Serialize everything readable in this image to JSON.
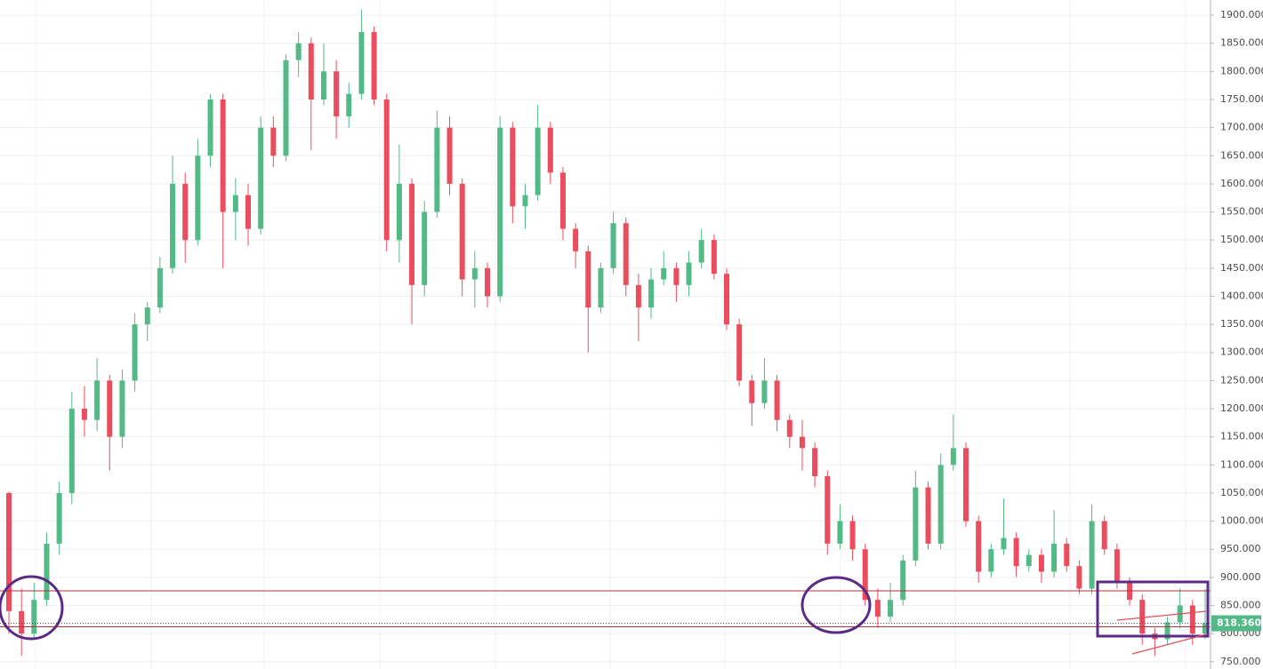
{
  "chart_data": {
    "type": "candlestick",
    "open": [
      1050,
      840,
      800,
      860,
      960,
      1050,
      1200,
      1180,
      1250,
      1150,
      1250,
      1350,
      1380,
      1450,
      1600,
      1500,
      1650,
      1750,
      1550,
      1580,
      1520,
      1700,
      1650,
      1820,
      1850,
      1750,
      1800,
      1720,
      1760,
      1870,
      1750,
      1500,
      1600,
      1420,
      1550,
      1700,
      1600,
      1430,
      1450,
      1400,
      1700,
      1560,
      1580,
      1700,
      1620,
      1520,
      1480,
      1380,
      1450,
      1530,
      1420,
      1380,
      1430,
      1450,
      1420,
      1460,
      1500,
      1440,
      1350,
      1250,
      1210,
      1250,
      1180,
      1150,
      1130,
      1080,
      960,
      1000,
      950,
      860,
      830,
      860,
      930,
      1060,
      960,
      1100,
      1130,
      1000,
      910,
      950,
      970,
      920,
      940,
      910,
      960,
      920,
      880,
      1000,
      950,
      890,
      860,
      800,
      790,
      820,
      850,
      800
    ],
    "high": [
      1052,
      880,
      890,
      980,
      1070,
      1230,
      1240,
      1290,
      1260,
      1270,
      1370,
      1390,
      1470,
      1650,
      1620,
      1680,
      1760,
      1760,
      1610,
      1600,
      1720,
      1720,
      1830,
      1870,
      1860,
      1850,
      1820,
      1780,
      1910,
      1880,
      1760,
      1670,
      1610,
      1570,
      1730,
      1720,
      1610,
      1480,
      1460,
      1720,
      1710,
      1600,
      1740,
      1710,
      1630,
      1530,
      1490,
      1460,
      1550,
      1540,
      1440,
      1450,
      1480,
      1460,
      1480,
      1520,
      1510,
      1450,
      1360,
      1260,
      1290,
      1260,
      1190,
      1180,
      1140,
      1090,
      1030,
      1010,
      960,
      880,
      890,
      940,
      1090,
      1070,
      1120,
      1190,
      1140,
      1010,
      960,
      1040,
      980,
      950,
      950,
      1020,
      970,
      930,
      1030,
      1010,
      960,
      900,
      870,
      810,
      830,
      880,
      860,
      880
    ],
    "low": [
      800,
      760,
      790,
      850,
      940,
      1030,
      1150,
      1160,
      1090,
      1130,
      1230,
      1320,
      1370,
      1440,
      1460,
      1490,
      1630,
      1450,
      1500,
      1490,
      1510,
      1630,
      1640,
      1790,
      1660,
      1740,
      1680,
      1700,
      1750,
      1740,
      1480,
      1460,
      1350,
      1400,
      1540,
      1580,
      1400,
      1380,
      1380,
      1390,
      1530,
      1520,
      1570,
      1600,
      1500,
      1450,
      1300,
      1370,
      1440,
      1400,
      1320,
      1360,
      1420,
      1390,
      1400,
      1450,
      1430,
      1340,
      1240,
      1170,
      1200,
      1160,
      1130,
      1090,
      1060,
      940,
      950,
      930,
      850,
      810,
      820,
      850,
      920,
      950,
      950,
      1090,
      990,
      890,
      900,
      940,
      900,
      910,
      890,
      900,
      910,
      870,
      870,
      940,
      880,
      850,
      780,
      760,
      780,
      810,
      780,
      790
    ],
    "close": [
      840,
      800,
      860,
      960,
      1050,
      1200,
      1180,
      1250,
      1150,
      1250,
      1350,
      1380,
      1450,
      1600,
      1500,
      1650,
      1750,
      1550,
      1580,
      1520,
      1700,
      1650,
      1820,
      1850,
      1750,
      1800,
      1720,
      1760,
      1870,
      1750,
      1500,
      1600,
      1420,
      1550,
      1700,
      1600,
      1430,
      1450,
      1400,
      1700,
      1560,
      1580,
      1700,
      1620,
      1520,
      1480,
      1380,
      1450,
      1530,
      1420,
      1380,
      1430,
      1450,
      1420,
      1460,
      1500,
      1440,
      1350,
      1250,
      1210,
      1250,
      1180,
      1150,
      1130,
      1080,
      960,
      1000,
      950,
      860,
      830,
      860,
      930,
      1060,
      960,
      1100,
      1130,
      1000,
      910,
      950,
      970,
      920,
      940,
      910,
      960,
      920,
      880,
      1000,
      950,
      890,
      860,
      800,
      790,
      820,
      850,
      800,
      818.36
    ],
    "up_color": "#53b987",
    "down_color": "#eb4d5c",
    "ylim": [
      737,
      1927
    ],
    "yticks": [
      {
        "value": 750,
        "label": "750.000"
      },
      {
        "value": 800,
        "label": "800.000"
      },
      {
        "value": 850,
        "label": "850.000"
      },
      {
        "value": 900,
        "label": "900.000"
      },
      {
        "value": 950,
        "label": "950.000"
      },
      {
        "value": 1000,
        "label": "1000.000"
      },
      {
        "value": 1050,
        "label": "1050.000"
      },
      {
        "value": 1100,
        "label": "1100.000"
      },
      {
        "value": 1150,
        "label": "1150.000"
      },
      {
        "value": 1200,
        "label": "1200.000"
      },
      {
        "value": 1250,
        "label": "1250.000"
      },
      {
        "value": 1300,
        "label": "1300.000"
      },
      {
        "value": 1350,
        "label": "1350.000"
      },
      {
        "value": 1400,
        "label": "1400.000"
      },
      {
        "value": 1450,
        "label": "1450.000"
      },
      {
        "value": 1500,
        "label": "1500.000"
      },
      {
        "value": 1550,
        "label": "1550.000"
      },
      {
        "value": 1600,
        "label": "1600.000"
      },
      {
        "value": 1650,
        "label": "1650.000"
      },
      {
        "value": 1700,
        "label": "1700.000"
      },
      {
        "value": 1750,
        "label": "1750.000"
      },
      {
        "value": 1800,
        "label": "1800.000"
      },
      {
        "value": 1850,
        "label": "1850.000"
      },
      {
        "value": 1900,
        "label": "1900.000"
      }
    ],
    "grid": true,
    "hlines": [
      876,
      812
    ],
    "hline_color": "#b2323c",
    "last_price": {
      "value": 818.36,
      "label": "818.360"
    },
    "last_price_color": "#53b987"
  }
}
